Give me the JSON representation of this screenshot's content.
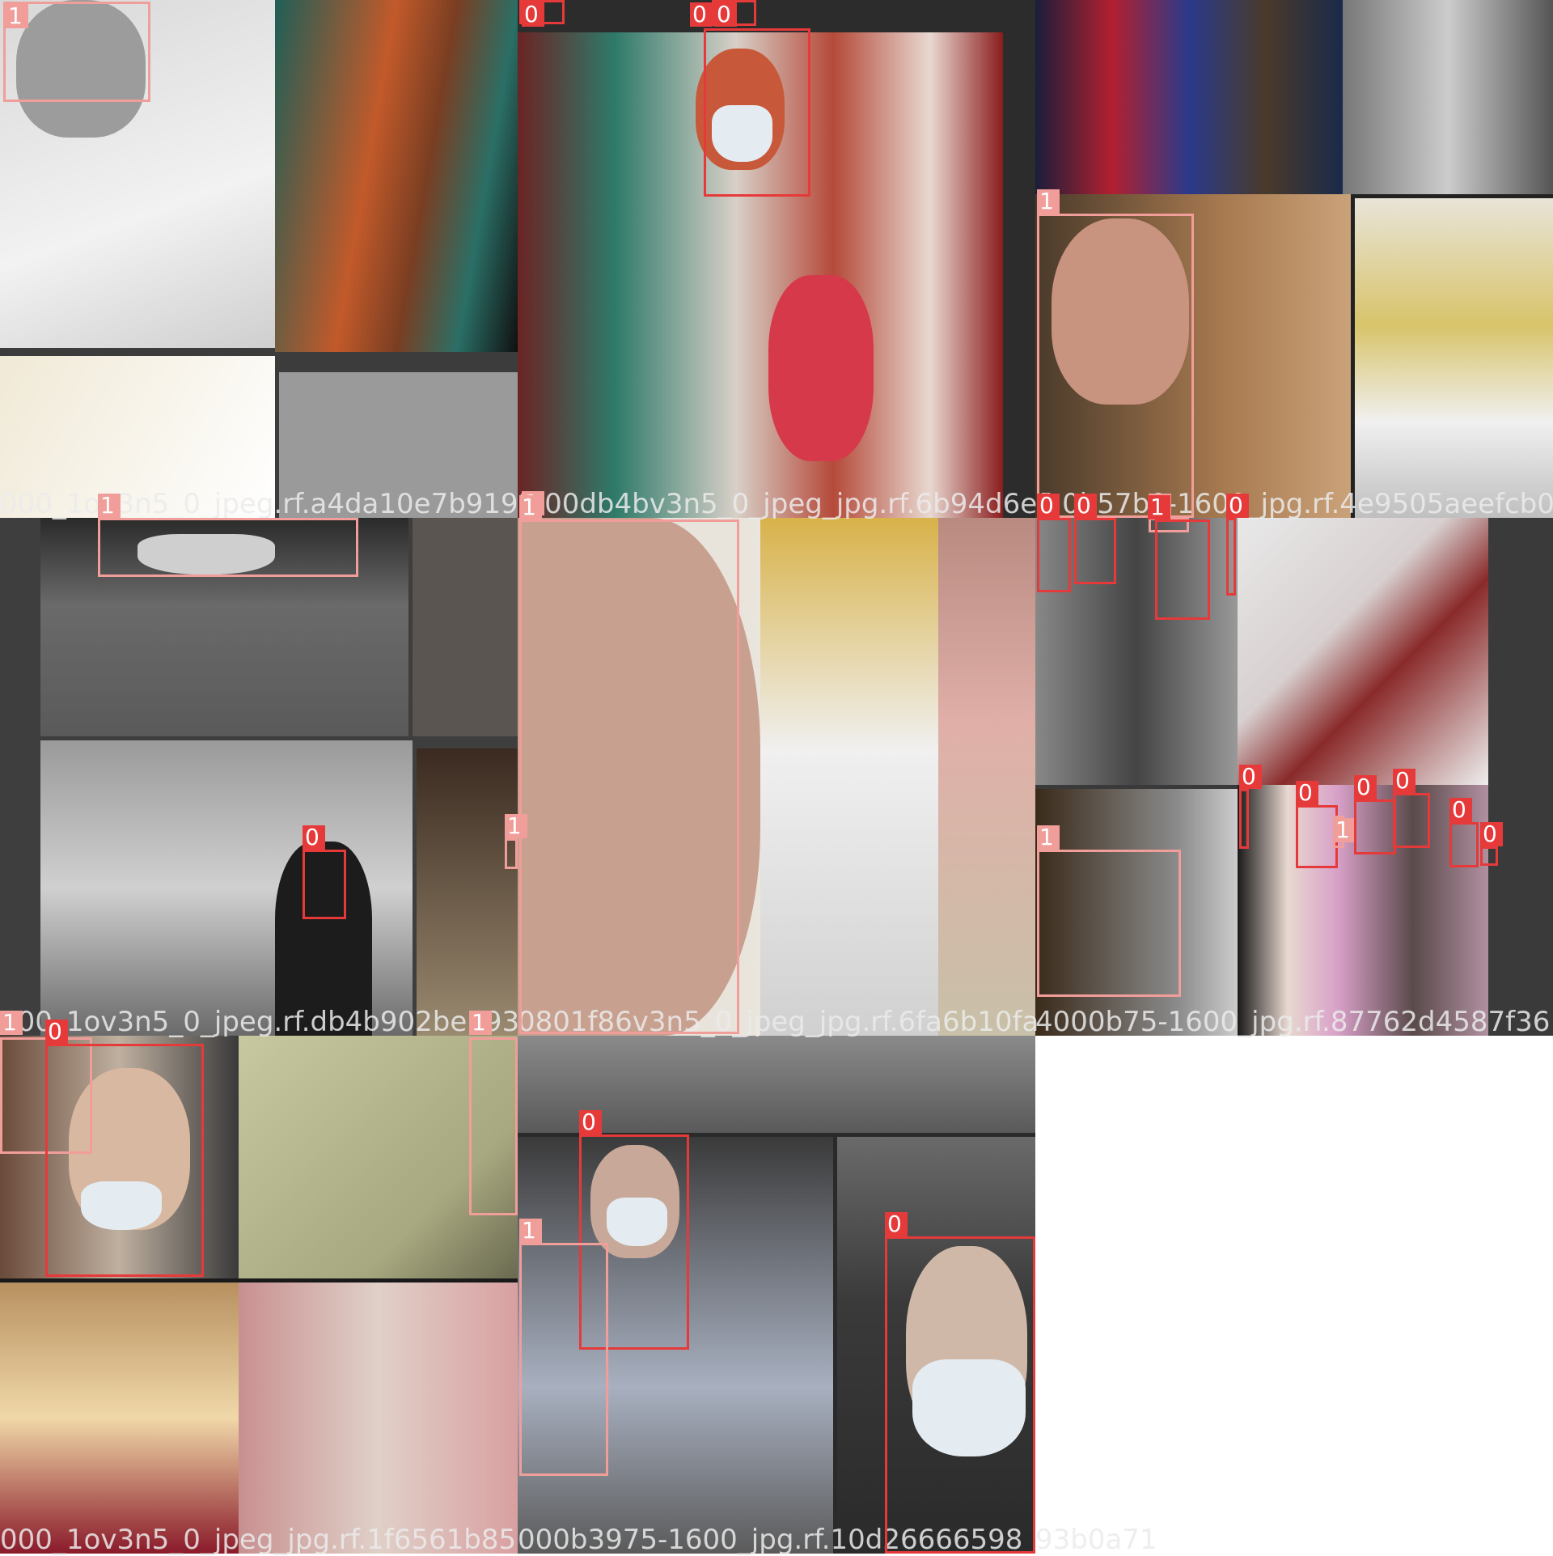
{
  "captions": [
    "000_1ov3n5_0_jpeg.rf.a4da10e7b919",
    "1:00db4bv3n5_0_jpeg_jpg.rf.6b94d6e4",
    "0:0b57b0-1600_jpg.rf.4e9505aeefcb0",
    "100_1ov3n5_0_jpeg.rf.db4b902be193",
    "0801f86v3n5_0_jpeg_jpg.rf.6fa6b10fa",
    "4000b75-1600_jpg.rf.87762d4587f36",
    "000_1ov3n5_0_jpeg_jpg.rf.1f6561b85",
    "000b3975-1600_jpg.rf.10d26666598",
    "93b0a71"
  ],
  "class_labels": {
    "mask": "0",
    "no_mask": "1"
  },
  "colors": {
    "class_0": "#e63a3a",
    "class_1": "#f19e9a"
  }
}
